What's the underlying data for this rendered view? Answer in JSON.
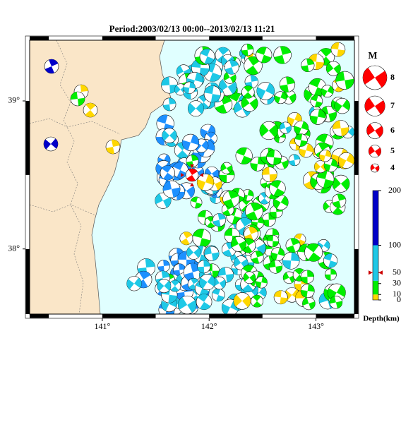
{
  "map": {
    "title": "Period:2003/02/13 00:00--2013/02/13 11:21",
    "xlim": [
      140.32,
      143.36
    ],
    "ylim": [
      37.56,
      39.41
    ],
    "xticks": [
      {
        "value": 141,
        "label": "141°"
      },
      {
        "value": 142,
        "label": "142°"
      },
      {
        "value": 143,
        "label": "143°"
      }
    ],
    "yticks": [
      {
        "value": 38,
        "label": "38°"
      },
      {
        "value": 39,
        "label": "39°"
      }
    ]
  },
  "magnitude_legend": {
    "title": "M",
    "items": [
      8,
      7,
      6,
      5,
      4
    ],
    "color": "#ff0000"
  },
  "depth_scale": {
    "title": "Depth(km)",
    "ylim": [
      0,
      200
    ],
    "ticks": [
      0,
      10,
      30,
      50,
      100,
      200
    ],
    "bands": [
      {
        "from": 0,
        "to": 10,
        "color": "#ffd700"
      },
      {
        "from": 10,
        "to": 35,
        "color": "#00ee00"
      },
      {
        "from": 35,
        "to": 100,
        "color": "#1ec8e6"
      },
      {
        "from": 100,
        "to": 200,
        "color": "#0000c8"
      }
    ]
  }
}
